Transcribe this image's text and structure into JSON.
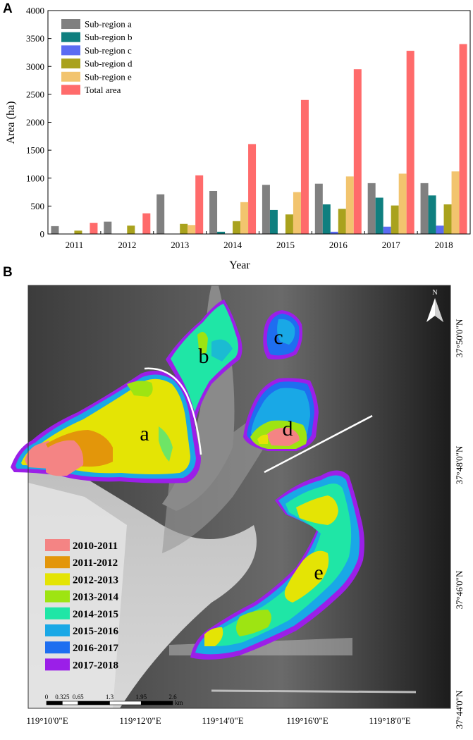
{
  "panels": {
    "a_label": "A",
    "b_label": "B"
  },
  "chart_data": {
    "type": "bar",
    "xlabel": "Year",
    "ylabel": "Area (ha)",
    "ylim": [
      0,
      4000
    ],
    "yticks": [
      0,
      500,
      1000,
      1500,
      2000,
      2500,
      3000,
      3500,
      4000
    ],
    "categories": [
      "2011",
      "2012",
      "2013",
      "2014",
      "2015",
      "2016",
      "2017",
      "2018"
    ],
    "legend_position": "top-left",
    "series": [
      {
        "name": "Sub-region a",
        "color": "#808080",
        "values": [
          140,
          220,
          710,
          770,
          880,
          900,
          910,
          910
        ]
      },
      {
        "name": "Sub-region b",
        "color": "#0f7f7f",
        "values": [
          0,
          0,
          0,
          40,
          430,
          530,
          650,
          690
        ]
      },
      {
        "name": "Sub-region c",
        "color": "#5b6cf2",
        "values": [
          0,
          0,
          0,
          0,
          0,
          40,
          130,
          150
        ]
      },
      {
        "name": "Sub-region d",
        "color": "#a9a21d",
        "values": [
          60,
          150,
          180,
          230,
          350,
          450,
          510,
          530
        ]
      },
      {
        "name": "Sub-region e",
        "color": "#f2c46e",
        "values": [
          0,
          0,
          160,
          570,
          750,
          1030,
          1080,
          1120
        ]
      },
      {
        "name": "Total area",
        "color": "#ff6b6b",
        "values": [
          200,
          370,
          1050,
          1610,
          2400,
          2950,
          3280,
          3400
        ]
      }
    ]
  },
  "map": {
    "region_labels": [
      "a",
      "b",
      "c",
      "d",
      "e"
    ],
    "legend": [
      {
        "label": "2010-2011",
        "color": "#f48484"
      },
      {
        "label": "2011-2012",
        "color": "#e3960a"
      },
      {
        "label": "2012-2013",
        "color": "#e4e405"
      },
      {
        "label": "2013-2014",
        "color": "#9ee412"
      },
      {
        "label": "2014-2015",
        "color": "#1fe6a6"
      },
      {
        "label": "2015-2016",
        "color": "#19a8e6"
      },
      {
        "label": "2016-2017",
        "color": "#1e6ef0"
      },
      {
        "label": "2017-2018",
        "color": "#9b1fe8"
      }
    ],
    "north": "N",
    "lon_ticks": [
      "119°10'0\"E",
      "119°12'0\"E",
      "119°14'0\"E",
      "119°16'0\"E",
      "119°18'0\"E"
    ],
    "lat_ticks": [
      "37°50'0\"N",
      "37°48'0\"N",
      "37°46'0\"N",
      "37°44'0\"N"
    ],
    "scale_ticks": [
      "0",
      "0.325",
      "0.65",
      "1.3",
      "1.95",
      "2.6"
    ],
    "scale_unit": "km"
  }
}
